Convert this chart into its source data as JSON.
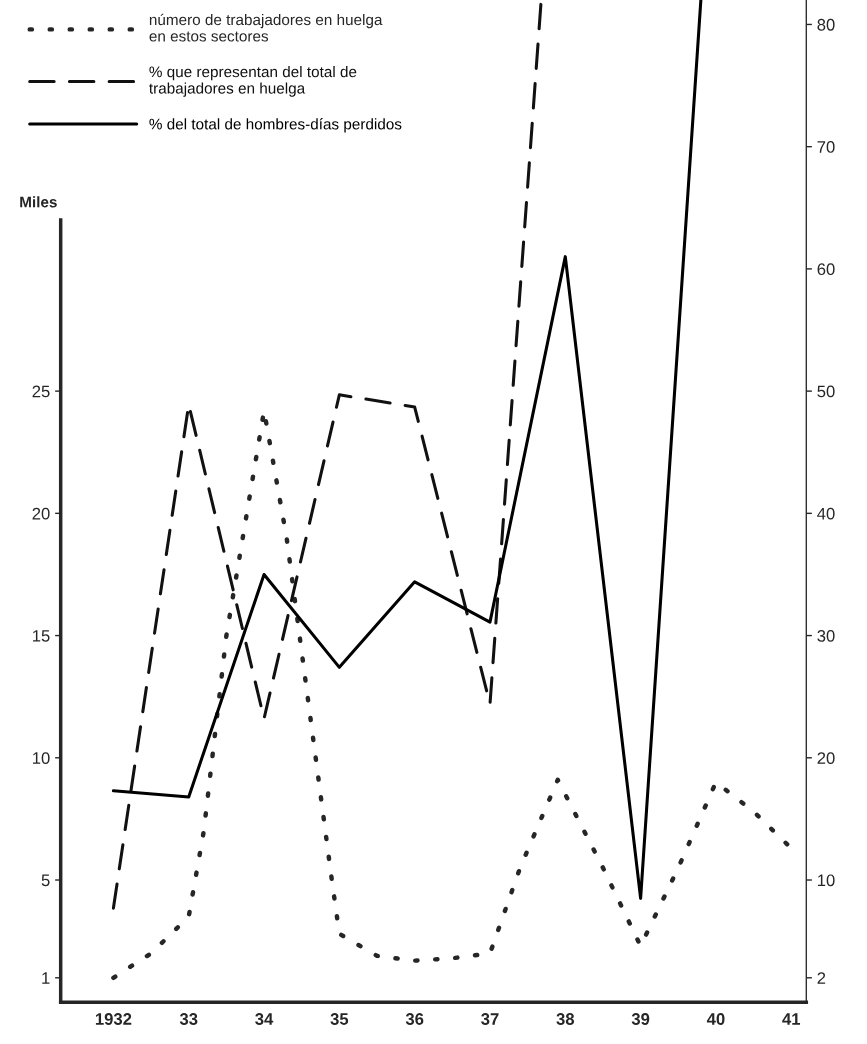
{
  "chart_data": {
    "type": "line",
    "ylabel": "Miles",
    "series": [
      {
        "name": "número de trabajadores en huelga\nen estos sectores",
        "color": "#262626",
        "line_style": "dotted",
        "x": [
          1932,
          1932.5,
          1932.9,
          1933,
          1933.2,
          1933.5,
          1934,
          1934.3,
          1934.6,
          1934.9,
          1935,
          1935.5,
          1936,
          1936.5,
          1937,
          1937.4,
          1937.9,
          1938.5,
          1939,
          1939.5,
          1940,
          1940.5,
          1941
        ],
        "values": [
          1.0,
          2.0,
          3.2,
          3.5,
          7,
          15,
          24.2,
          19,
          12,
          5,
          2.8,
          1.9,
          1.7,
          1.8,
          2.0,
          5.5,
          9.1,
          5.5,
          2.3,
          5.5,
          9.0,
          7.8,
          6.3
        ]
      },
      {
        "name": "% que representan del total de\ntrabajadores en huelga",
        "color": "#111111",
        "line_style": "dashed",
        "axis": "y2",
        "x": [
          1932,
          1933,
          1934,
          1935,
          1936,
          1937,
          1937.68
        ],
        "values": [
          7.7,
          48.9,
          23.2,
          49.7,
          48.7,
          24.4,
          82
        ]
      },
      {
        "name": "% del total de hombres-días perdidos",
        "color": "#000000",
        "line_style": "solid",
        "axis": "y2",
        "x": [
          1932,
          1933,
          1934,
          1935,
          1936,
          1937,
          1938,
          1939,
          1939.8
        ],
        "values": [
          17.3,
          16.8,
          35,
          27.4,
          34.4,
          31.1,
          61,
          8.5,
          82
        ]
      }
    ],
    "xlim": [
      1931.3,
      1941.2
    ],
    "xticks": [
      {
        "value": 1932,
        "label": "1932"
      },
      {
        "value": 1933,
        "label": "33"
      },
      {
        "value": 1934,
        "label": "34"
      },
      {
        "value": 1935,
        "label": "35"
      },
      {
        "value": 1936,
        "label": "36"
      },
      {
        "value": 1937,
        "label": "37"
      },
      {
        "value": 1938,
        "label": "38"
      },
      {
        "value": 1939,
        "label": "39"
      },
      {
        "value": 1940,
        "label": "40"
      },
      {
        "value": 1941,
        "label": "41"
      }
    ],
    "ylim": [
      0,
      41
    ],
    "yticks": [
      1,
      5,
      10,
      15,
      20,
      25
    ],
    "y2lim": [
      0,
      82
    ],
    "y2ticks": [
      2,
      10,
      20,
      30,
      40,
      50,
      60,
      70,
      80
    ],
    "grid": false,
    "legend": "top left",
    "marker": "none"
  }
}
